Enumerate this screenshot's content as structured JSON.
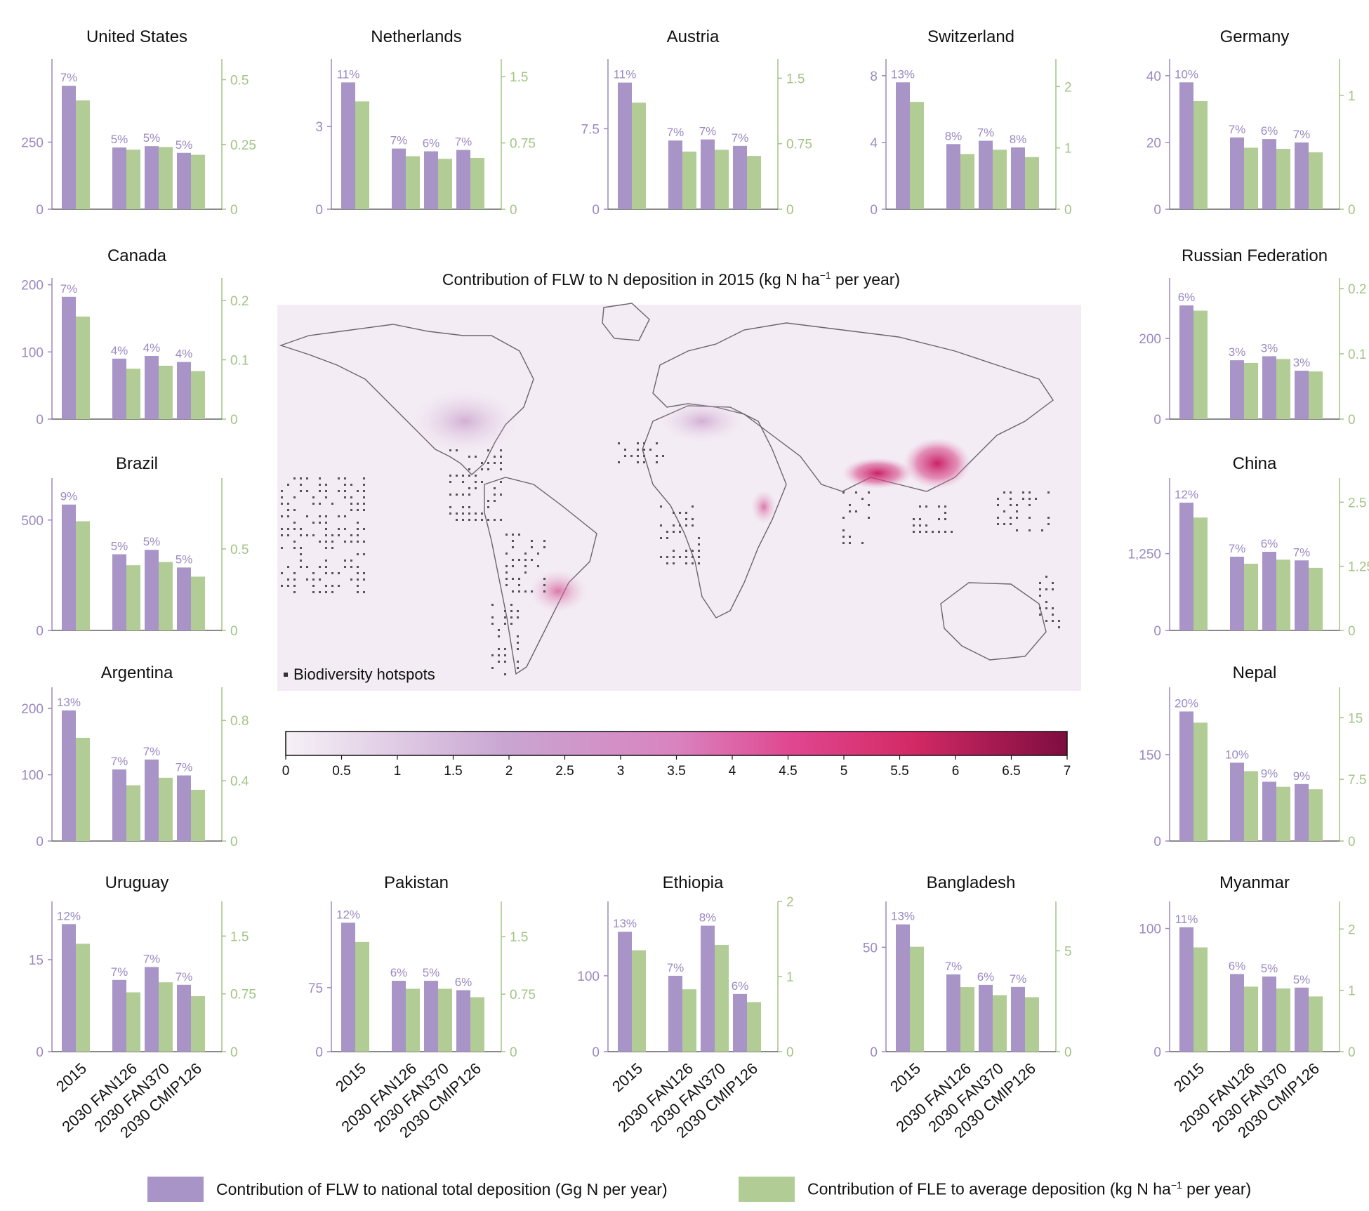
{
  "colors": {
    "primary_bar": "#a894c6",
    "secondary_bar": "#b2cc96",
    "primary_axis": "#9b89c1",
    "secondary_axis": "#a3c486",
    "map_ocean": "#f3ecf4"
  },
  "legend": {
    "primary_label": "Contribution of FLW to national total deposition (Gg N per year)",
    "secondary_label_main": "Contribution of FLE to average deposition (kg N ha",
    "secondary_label_sup": "−1",
    "secondary_label_tail": " per year)"
  },
  "map": {
    "title_main": "Contribution of FLW to N deposition in 2015 (kg N ha",
    "title_sup": "−1",
    "title_tail": " per year)",
    "hotspot_label": "Biodiversity hotspots",
    "colorbar_ticks": [
      "0",
      "0.5",
      "1",
      "1.5",
      "2",
      "2.5",
      "3",
      "3.5",
      "4",
      "4.5",
      "5",
      "5.5",
      "6",
      "6.5",
      "7"
    ]
  },
  "chart_data": [
    {
      "type": "bar",
      "title": "United States",
      "categories": [
        "2015",
        "2030 FAN126",
        "2030 FAN370",
        "2030 CMIP126"
      ],
      "series": [
        {
          "values": [
            460,
            230,
            235,
            210
          ],
          "labels": [
            "7%",
            "5%",
            "5%",
            "5%"
          ]
        },
        {
          "values": [
            0.42,
            0.23,
            0.24,
            0.21
          ]
        }
      ],
      "left_ticks": [
        "0",
        "250"
      ],
      "right_ticks": [
        "0",
        "0.25",
        "0.5"
      ],
      "ylim_left": [
        0,
        560
      ],
      "ylim_right": [
        0,
        0.58
      ]
    },
    {
      "type": "bar",
      "title": "Netherlands",
      "categories": [
        "2015",
        "2030 FAN126",
        "2030 FAN370",
        "2030 CMIP126"
      ],
      "series": [
        {
          "values": [
            4.6,
            2.2,
            2.1,
            2.15
          ],
          "labels": [
            "11%",
            "7%",
            "6%",
            "7%"
          ]
        },
        {
          "values": [
            1.22,
            0.6,
            0.57,
            0.58
          ]
        }
      ],
      "left_ticks": [
        "0",
        "3"
      ],
      "right_ticks": [
        "0",
        "0.75",
        "1.5"
      ],
      "ylim_left": [
        0,
        5.45
      ],
      "ylim_right": [
        0,
        1.7
      ]
    },
    {
      "type": "bar",
      "title": "Austria",
      "categories": [
        "2015",
        "2030 FAN126",
        "2030 FAN370",
        "2030 CMIP126"
      ],
      "series": [
        {
          "values": [
            11.8,
            6.4,
            6.5,
            5.9
          ],
          "labels": [
            "11%",
            "7%",
            "7%",
            "7%"
          ]
        },
        {
          "values": [
            1.22,
            0.66,
            0.68,
            0.61
          ]
        }
      ],
      "left_ticks": [
        "0",
        "7.5"
      ],
      "right_ticks": [
        "0",
        "0.75",
        "1.5"
      ],
      "ylim_left": [
        0,
        14
      ],
      "ylim_right": [
        0,
        1.72
      ]
    },
    {
      "type": "bar",
      "title": "Switzerland",
      "categories": [
        "2015",
        "2030 FAN126",
        "2030 FAN370",
        "2030 CMIP126"
      ],
      "series": [
        {
          "values": [
            7.6,
            3.9,
            4.1,
            3.7
          ],
          "labels": [
            "13%",
            "8%",
            "7%",
            "8%"
          ]
        },
        {
          "values": [
            1.75,
            0.9,
            0.97,
            0.85
          ]
        }
      ],
      "left_ticks": [
        "0",
        "4",
        "8"
      ],
      "right_ticks": [
        "0",
        "1",
        "2"
      ],
      "ylim_left": [
        0,
        9
      ],
      "ylim_right": [
        0,
        2.45
      ]
    },
    {
      "type": "bar",
      "title": "Germany",
      "categories": [
        "2015",
        "2030 FAN126",
        "2030 FAN370",
        "2030 CMIP126"
      ],
      "series": [
        {
          "values": [
            38,
            21.5,
            21,
            20
          ],
          "labels": [
            "10%",
            "7%",
            "6%",
            "7%"
          ]
        },
        {
          "values": [
            0.95,
            0.54,
            0.53,
            0.5
          ]
        }
      ],
      "left_ticks": [
        "0",
        "20",
        "40"
      ],
      "right_ticks": [
        "0",
        "1"
      ],
      "ylim_left": [
        0,
        45
      ],
      "ylim_right": [
        0,
        1.32
      ]
    },
    {
      "type": "bar",
      "title": "Canada",
      "categories": [
        "2015",
        "2030 FAN126",
        "2030 FAN370",
        "2030 CMIP126"
      ],
      "series": [
        {
          "values": [
            182,
            90,
            94,
            85
          ],
          "labels": [
            "7%",
            "4%",
            "4%",
            "4%"
          ]
        },
        {
          "values": [
            0.173,
            0.085,
            0.09,
            0.081
          ]
        }
      ],
      "left_ticks": [
        "0",
        "100",
        "200"
      ],
      "right_ticks": [
        "0",
        "0.1",
        "0.2"
      ],
      "ylim_left": [
        0,
        210
      ],
      "ylim_right": [
        0,
        0.238
      ]
    },
    {
      "type": "bar",
      "title": "Russian Federation",
      "categories": [
        "2015",
        "2030 FAN126",
        "2030 FAN370",
        "2030 CMIP126"
      ],
      "series": [
        {
          "values": [
            282,
            146,
            156,
            120
          ],
          "labels": [
            "6%",
            "3%",
            "3%",
            "3%"
          ]
        },
        {
          "values": [
            0.166,
            0.086,
            0.092,
            0.073
          ]
        }
      ],
      "left_ticks": [
        "0",
        "200"
      ],
      "right_ticks": [
        "0",
        "0.1",
        "0.2"
      ],
      "ylim_left": [
        0,
        350
      ],
      "ylim_right": [
        0,
        0.216
      ]
    },
    {
      "type": "bar",
      "title": "Brazil",
      "categories": [
        "2015",
        "2030 FAN126",
        "2030 FAN370",
        "2030 CMIP126"
      ],
      "series": [
        {
          "values": [
            570,
            345,
            365,
            285
          ],
          "labels": [
            "9%",
            "5%",
            "5%",
            "5%"
          ]
        },
        {
          "values": [
            0.67,
            0.4,
            0.42,
            0.33
          ]
        }
      ],
      "left_ticks": [
        "0",
        "500"
      ],
      "right_ticks": [
        "0",
        "0.5"
      ],
      "ylim_left": [
        0,
        690
      ],
      "ylim_right": [
        0,
        0.935
      ]
    },
    {
      "type": "bar",
      "title": "China",
      "categories": [
        "2015",
        "2030 FAN126",
        "2030 FAN370",
        "2030 CMIP126"
      ],
      "series": [
        {
          "values": [
            2080,
            1200,
            1280,
            1140
          ],
          "labels": [
            "12%",
            "7%",
            "6%",
            "7%"
          ]
        },
        {
          "values": [
            2.2,
            1.3,
            1.38,
            1.22
          ]
        }
      ],
      "left_ticks": [
        "0",
        "1,250"
      ],
      "right_ticks": [
        "0",
        "1.25",
        "2.5"
      ],
      "ylim_left": [
        0,
        2480
      ],
      "ylim_right": [
        0,
        2.97
      ]
    },
    {
      "type": "bar",
      "title": "Argentina",
      "categories": [
        "2015",
        "2030 FAN126",
        "2030 FAN370",
        "2030 CMIP126"
      ],
      "series": [
        {
          "values": [
            197,
            108,
            123,
            99
          ],
          "labels": [
            "13%",
            "7%",
            "7%",
            "7%"
          ]
        },
        {
          "values": [
            0.685,
            0.37,
            0.42,
            0.34
          ]
        }
      ],
      "left_ticks": [
        "0",
        "100",
        "200"
      ],
      "right_ticks": [
        "0",
        "0.4",
        "0.8"
      ],
      "ylim_left": [
        0,
        232
      ],
      "ylim_right": [
        0,
        1.02
      ]
    },
    {
      "type": "bar",
      "title": "Nepal",
      "categories": [
        "2015",
        "2030 FAN126",
        "2030 FAN370",
        "2030 CMIP126"
      ],
      "series": [
        {
          "values": [
            225,
            136,
            103,
            99
          ],
          "labels": [
            "20%",
            "10%",
            "9%",
            "9%"
          ]
        },
        {
          "values": [
            14.4,
            8.5,
            6.6,
            6.3
          ]
        }
      ],
      "left_ticks": [
        "0",
        "150"
      ],
      "right_ticks": [
        "0",
        "7.5",
        "15"
      ],
      "ylim_left": [
        0,
        267
      ],
      "ylim_right": [
        0,
        18.7
      ]
    },
    {
      "type": "bar",
      "title": "Uruguay",
      "categories": [
        "2015",
        "2030 FAN126",
        "2030 FAN370",
        "2030 CMIP126"
      ],
      "series": [
        {
          "values": [
            20.8,
            11.7,
            13.8,
            10.9
          ],
          "labels": [
            "12%",
            "7%",
            "7%",
            "7%"
          ]
        },
        {
          "values": [
            1.4,
            0.77,
            0.9,
            0.72
          ]
        }
      ],
      "left_ticks": [
        "0",
        "15"
      ],
      "right_ticks": [
        "0",
        "0.75",
        "1.5"
      ],
      "ylim_left": [
        0,
        24.5
      ],
      "ylim_right": [
        0,
        1.95
      ]
    },
    {
      "type": "bar",
      "title": "Pakistan",
      "categories": [
        "2015",
        "2030 FAN126",
        "2030 FAN370",
        "2030 CMIP126"
      ],
      "series": [
        {
          "values": [
            151,
            83,
            83,
            72
          ],
          "labels": [
            "12%",
            "6%",
            "5%",
            "6%"
          ]
        },
        {
          "values": [
            1.43,
            0.82,
            0.82,
            0.71
          ]
        }
      ],
      "left_ticks": [
        "0",
        "75"
      ],
      "right_ticks": [
        "0",
        "0.75",
        "1.5"
      ],
      "ylim_left": [
        0,
        176
      ],
      "ylim_right": [
        0,
        1.96
      ]
    },
    {
      "type": "bar",
      "title": "Ethiopia",
      "categories": [
        "2015",
        "2030 FAN126",
        "2030 FAN370",
        "2030 CMIP126"
      ],
      "series": [
        {
          "values": [
            158,
            100,
            166,
            76
          ],
          "labels": [
            "13%",
            "7%",
            "8%",
            "6%"
          ]
        },
        {
          "values": [
            1.35,
            0.83,
            1.42,
            0.66
          ]
        }
      ],
      "left_ticks": [
        "0",
        "100"
      ],
      "right_ticks": [
        "0",
        "1",
        "2"
      ],
      "ylim_left": [
        0,
        198
      ],
      "ylim_right": [
        0,
        2
      ]
    },
    {
      "type": "bar",
      "title": "Bangladesh",
      "categories": [
        "2015",
        "2030 FAN126",
        "2030 FAN370",
        "2030 CMIP126"
      ],
      "series": [
        {
          "values": [
            61,
            37,
            32,
            31
          ],
          "labels": [
            "13%",
            "7%",
            "6%",
            "7%"
          ]
        },
        {
          "values": [
            5.2,
            3.2,
            2.8,
            2.7
          ]
        }
      ],
      "left_ticks": [
        "0",
        "50"
      ],
      "right_ticks": [
        "0",
        "5"
      ],
      "ylim_left": [
        0,
        72
      ],
      "ylim_right": [
        0,
        7.45
      ]
    },
    {
      "type": "bar",
      "title": "Myanmar",
      "categories": [
        "2015",
        "2030 FAN126",
        "2030 FAN370",
        "2030 CMIP126"
      ],
      "series": [
        {
          "values": [
            101,
            63,
            61,
            52
          ],
          "labels": [
            "11%",
            "6%",
            "5%",
            "5%"
          ]
        },
        {
          "values": [
            1.7,
            1.06,
            1.03,
            0.9
          ]
        }
      ],
      "left_ticks": [
        "0",
        "100"
      ],
      "right_ticks": [
        "0",
        "1",
        "2"
      ],
      "ylim_left": [
        0,
        122
      ],
      "ylim_right": [
        0,
        2.45
      ]
    }
  ]
}
